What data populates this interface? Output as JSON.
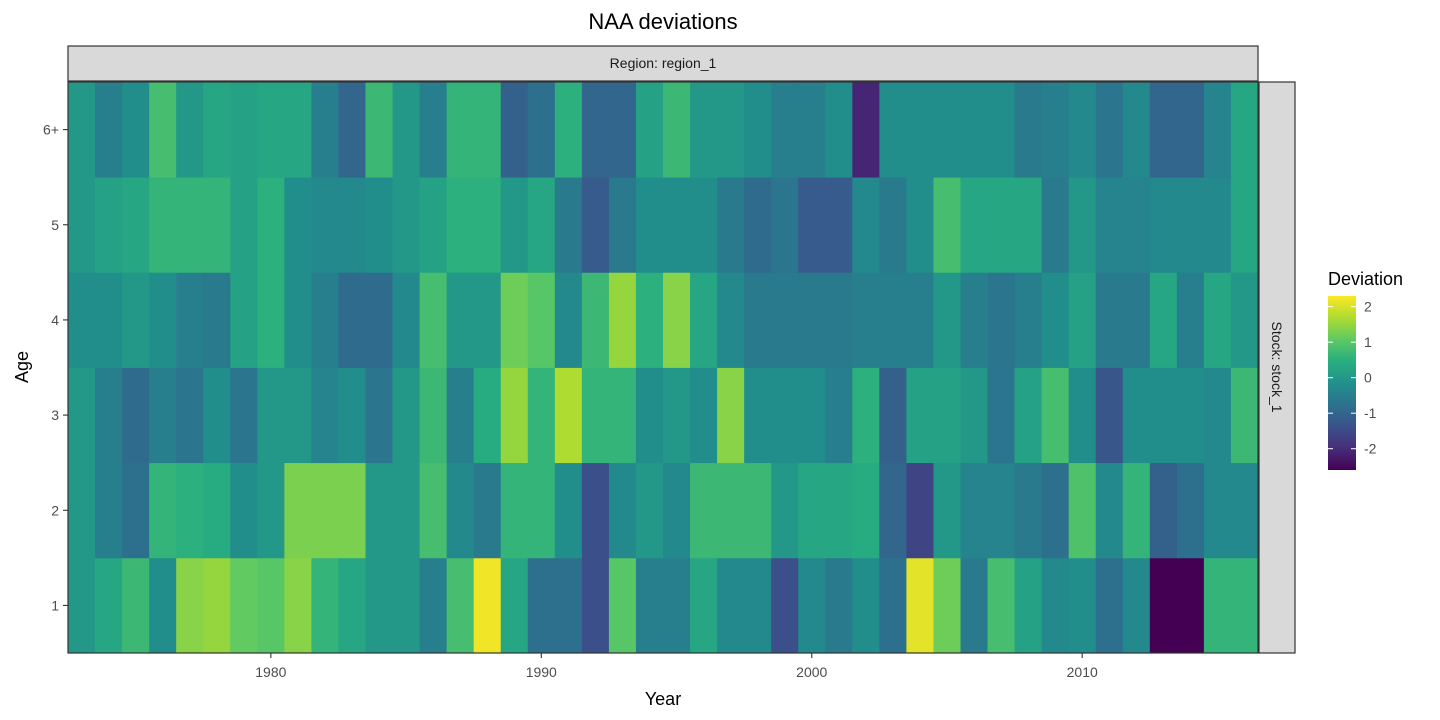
{
  "chart_data": {
    "type": "heatmap",
    "title": "NAA deviations",
    "xlabel": "Year",
    "ylabel": "Age",
    "facet_top_label": "Region: region_1",
    "facet_right_label": "Stock: stock_1",
    "x_ticks": [
      1980,
      1990,
      2000,
      2010
    ],
    "x_tick_labels": [
      "1980",
      "1990",
      "2000",
      "2010"
    ],
    "y_categories": [
      "1",
      "2",
      "3",
      "4",
      "5",
      "6+"
    ],
    "years": [
      1973,
      1974,
      1975,
      1976,
      1977,
      1978,
      1979,
      1980,
      1981,
      1982,
      1983,
      1984,
      1985,
      1986,
      1987,
      1988,
      1989,
      1990,
      1991,
      1992,
      1993,
      1994,
      1995,
      1996,
      1997,
      1998,
      1999,
      2000,
      2001,
      2002,
      2003,
      2004,
      2005,
      2006,
      2007,
      2008,
      2009,
      2010,
      2011,
      2012,
      2013,
      2014,
      2015,
      2016
    ],
    "xlim": [
      1972.5,
      2016.5
    ],
    "legend": {
      "title": "Deviation",
      "ticks": [
        2,
        1,
        0,
        -1,
        -2
      ],
      "tick_labels": [
        "2",
        "1",
        "0",
        "-1",
        "-2"
      ],
      "range": [
        -2.6,
        2.3
      ],
      "placement": "right"
    },
    "values": {
      "1": [
        0.0,
        0.3,
        0.7,
        -0.2,
        1.4,
        1.5,
        1.1,
        1.0,
        1.4,
        0.6,
        0.3,
        0.0,
        0.0,
        -0.5,
        0.8,
        2.2,
        0.3,
        -0.8,
        -0.8,
        -1.4,
        1.0,
        -0.5,
        -0.5,
        0.3,
        -0.3,
        -0.3,
        -1.4,
        -0.3,
        -0.6,
        -0.2,
        -0.8,
        2.1,
        1.2,
        -0.6,
        0.8,
        0.2,
        -0.3,
        -0.2,
        -0.8,
        -0.3,
        -2.6,
        -2.6,
        0.6,
        0.6
      ],
      "2": [
        0.0,
        -0.5,
        -0.8,
        0.6,
        0.5,
        0.4,
        -0.2,
        0.0,
        1.3,
        1.3,
        1.3,
        0.0,
        0.0,
        0.8,
        -0.3,
        -0.6,
        0.6,
        0.6,
        -0.2,
        -1.4,
        -0.3,
        0.0,
        -0.3,
        0.7,
        0.7,
        0.7,
        0.0,
        0.3,
        0.3,
        0.4,
        -1.0,
        -1.6,
        0.0,
        -0.4,
        -0.4,
        -0.6,
        -0.8,
        0.9,
        -0.3,
        0.6,
        -1.1,
        -0.8,
        -0.3,
        -0.3
      ],
      "3": [
        0.0,
        -0.5,
        -0.9,
        -0.5,
        -0.7,
        -0.2,
        -0.7,
        0.0,
        0.0,
        -0.4,
        -0.2,
        -0.7,
        0.0,
        0.7,
        -0.5,
        0.4,
        1.5,
        0.6,
        1.7,
        0.6,
        0.6,
        -0.2,
        0.0,
        -0.2,
        1.4,
        -0.2,
        -0.2,
        -0.2,
        -0.5,
        0.5,
        -1.1,
        0.2,
        0.2,
        0.0,
        -0.7,
        0.2,
        0.8,
        -0.2,
        -1.3,
        -0.2,
        -0.2,
        -0.2,
        -0.3,
        0.7
      ],
      "4": [
        -0.2,
        -0.2,
        0.0,
        -0.2,
        -0.5,
        -0.6,
        0.2,
        0.5,
        -0.2,
        -0.5,
        -0.9,
        -0.9,
        -0.3,
        0.8,
        0.0,
        0.0,
        1.2,
        1.0,
        -0.3,
        0.7,
        1.5,
        0.5,
        1.4,
        0.3,
        -0.3,
        -0.6,
        -0.6,
        -0.6,
        -0.6,
        -0.5,
        -0.5,
        -0.5,
        0.0,
        -0.5,
        -0.7,
        -0.5,
        -0.2,
        0.2,
        -0.6,
        -0.6,
        0.3,
        -0.5,
        0.3,
        0.0
      ],
      "5": [
        0.0,
        0.2,
        0.3,
        0.6,
        0.6,
        0.6,
        0.2,
        0.5,
        -0.2,
        -0.3,
        -0.3,
        -0.2,
        0.0,
        0.2,
        0.5,
        0.5,
        0.0,
        0.3,
        -0.6,
        -1.2,
        -0.6,
        -0.2,
        -0.2,
        -0.2,
        -0.6,
        -0.9,
        -0.7,
        -1.2,
        -1.2,
        -0.3,
        -0.6,
        -0.2,
        0.8,
        0.3,
        0.3,
        0.3,
        -0.6,
        0.0,
        -0.4,
        -0.4,
        -0.3,
        -0.3,
        -0.3,
        0.3
      ],
      "6+": [
        0.0,
        -0.5,
        -0.2,
        0.8,
        0.0,
        0.3,
        0.2,
        0.3,
        0.3,
        -0.5,
        -1.0,
        0.7,
        0.0,
        -0.5,
        0.6,
        0.6,
        -1.1,
        -0.8,
        0.5,
        -1.0,
        -1.0,
        0.2,
        0.7,
        0.0,
        0.0,
        -0.2,
        -0.5,
        -0.5,
        -0.2,
        -2.1,
        -0.2,
        -0.2,
        -0.2,
        -0.2,
        -0.2,
        -0.6,
        -0.5,
        -0.3,
        -0.7,
        -0.3,
        -1.0,
        -1.0,
        -0.4,
        0.3
      ]
    }
  }
}
